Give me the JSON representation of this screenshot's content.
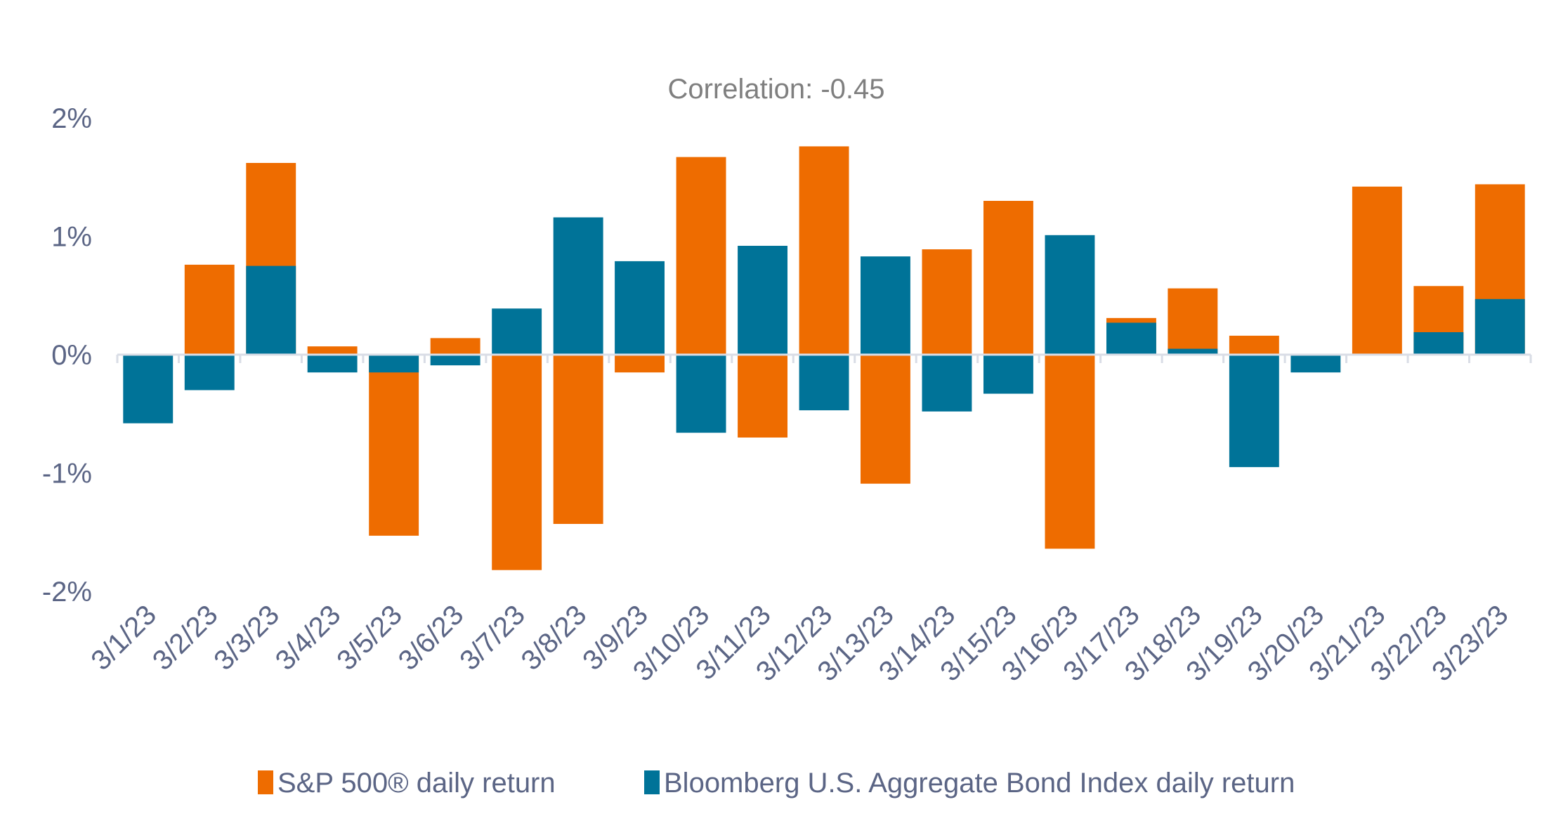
{
  "chart_data": {
    "type": "bar",
    "mode": "overlapped",
    "title": "Correlation: -0.45",
    "xlabel": "",
    "ylabel": "",
    "ylim": [
      -2,
      2
    ],
    "yticks": [
      2,
      1,
      0,
      -1,
      -2
    ],
    "ytick_labels": [
      "2%",
      "1%",
      "0%",
      "-1%",
      "-2%"
    ],
    "grid": false,
    "legend_position": "bottom",
    "categories": [
      "3/1/23",
      "3/2/23",
      "3/3/23",
      "3/4/23",
      "3/5/23",
      "3/6/23",
      "3/7/23",
      "3/8/23",
      "3/9/23",
      "3/10/23",
      "3/11/23",
      "3/12/23",
      "3/13/23",
      "3/14/23",
      "3/15/23",
      "3/16/23",
      "3/17/23",
      "3/18/23",
      "3/19/23",
      "3/20/23",
      "3/21/23",
      "3/22/23",
      "3/23/23"
    ],
    "series": [
      {
        "name": "S&P 500® daily return",
        "color": "#ee6c00",
        "values": [
          0.0,
          0.76,
          1.62,
          0.07,
          -1.53,
          0.14,
          -1.82,
          -1.43,
          -0.15,
          1.67,
          -0.7,
          1.76,
          -1.09,
          0.89,
          1.3,
          -1.64,
          0.31,
          0.56,
          0.16,
          0.0,
          1.42,
          0.58,
          1.44
        ]
      },
      {
        "name": "Bloomberg U.S. Aggregate Bond Index daily return",
        "color": "#007398",
        "values": [
          -0.58,
          -0.3,
          0.75,
          -0.15,
          -0.15,
          -0.09,
          0.39,
          1.16,
          0.79,
          -0.66,
          0.92,
          -0.47,
          0.83,
          -0.48,
          -0.33,
          1.01,
          0.27,
          0.05,
          -0.95,
          -0.15,
          0.0,
          0.19,
          0.47
        ]
      }
    ]
  },
  "colors": {
    "axis": "#d9dde6",
    "text": "#5b6585",
    "title": "#7f7f7f"
  }
}
